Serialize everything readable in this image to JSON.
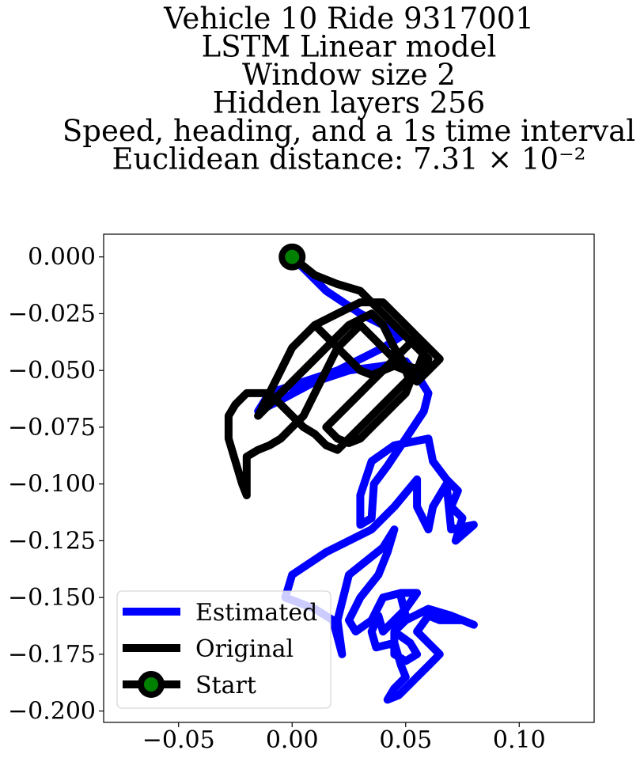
{
  "chart_data": {
    "type": "line",
    "title_lines": [
      "Vehicle 10 Ride 9317001",
      "LSTM Linear model",
      "Window size 2",
      "Hidden layers 256",
      "Speed, heading, and a 1s time interval",
      "Euclidean distance: 7.31 × 10⁻²"
    ],
    "xlim": [
      -0.083,
      0.133
    ],
    "ylim": [
      -0.205,
      0.01
    ],
    "x_ticks": [
      -0.05,
      0.0,
      0.05,
      0.1
    ],
    "x_tick_labels": [
      "−0.05",
      "0.00",
      "0.05",
      "0.10"
    ],
    "y_ticks": [
      0.0,
      -0.025,
      -0.05,
      -0.075,
      -0.1,
      -0.125,
      -0.15,
      -0.175,
      -0.2
    ],
    "y_tick_labels": [
      "0.000",
      "−0.025",
      "−0.050",
      "−0.075",
      "−0.100",
      "−0.125",
      "−0.150",
      "−0.175",
      "−0.200"
    ],
    "grid": false,
    "legend_position": "lower-left",
    "series": [
      {
        "name": "Estimated",
        "color": "#0000ff",
        "points": [
          [
            0.0,
            0.0
          ],
          [
            0.015,
            -0.015
          ],
          [
            0.03,
            -0.025
          ],
          [
            0.04,
            -0.03
          ],
          [
            0.048,
            -0.035
          ],
          [
            0.04,
            -0.04
          ],
          [
            0.03,
            -0.045
          ],
          [
            0.02,
            -0.05
          ],
          [
            0.005,
            -0.055
          ],
          [
            -0.01,
            -0.06
          ],
          [
            -0.015,
            -0.068
          ],
          [
            -0.005,
            -0.063
          ],
          [
            0.01,
            -0.055
          ],
          [
            0.025,
            -0.05
          ],
          [
            0.04,
            -0.048
          ],
          [
            0.05,
            -0.046
          ],
          [
            0.055,
            -0.052
          ],
          [
            0.06,
            -0.06
          ],
          [
            0.058,
            -0.068
          ],
          [
            0.05,
            -0.08
          ],
          [
            0.042,
            -0.092
          ],
          [
            0.036,
            -0.1
          ],
          [
            0.035,
            -0.115
          ],
          [
            0.03,
            -0.118
          ],
          [
            0.03,
            -0.105
          ],
          [
            0.035,
            -0.09
          ],
          [
            0.045,
            -0.083
          ],
          [
            0.06,
            -0.08
          ],
          [
            0.062,
            -0.09
          ],
          [
            0.068,
            -0.098
          ],
          [
            0.073,
            -0.103
          ],
          [
            0.07,
            -0.11
          ],
          [
            0.075,
            -0.115
          ],
          [
            0.072,
            -0.125
          ],
          [
            0.08,
            -0.118
          ],
          [
            0.07,
            -0.12
          ],
          [
            0.068,
            -0.1
          ],
          [
            0.062,
            -0.11
          ],
          [
            0.06,
            -0.12
          ],
          [
            0.055,
            -0.11
          ],
          [
            0.055,
            -0.098
          ],
          [
            0.045,
            -0.11
          ],
          [
            0.035,
            -0.12
          ],
          [
            0.015,
            -0.13
          ],
          [
            0.0,
            -0.14
          ],
          [
            -0.003,
            -0.15
          ],
          [
            0.01,
            -0.155
          ],
          [
            0.018,
            -0.16
          ],
          [
            0.022,
            -0.175
          ],
          [
            0.02,
            -0.16
          ],
          [
            0.025,
            -0.14
          ],
          [
            0.04,
            -0.128
          ],
          [
            0.045,
            -0.12
          ],
          [
            0.042,
            -0.13
          ],
          [
            0.038,
            -0.14
          ],
          [
            0.03,
            -0.15
          ],
          [
            0.025,
            -0.16
          ],
          [
            0.028,
            -0.165
          ],
          [
            0.035,
            -0.16
          ],
          [
            0.04,
            -0.15
          ],
          [
            0.048,
            -0.148
          ],
          [
            0.055,
            -0.148
          ],
          [
            0.05,
            -0.155
          ],
          [
            0.045,
            -0.16
          ],
          [
            0.04,
            -0.165
          ],
          [
            0.038,
            -0.158
          ],
          [
            0.035,
            -0.165
          ],
          [
            0.037,
            -0.172
          ],
          [
            0.045,
            -0.17
          ],
          [
            0.048,
            -0.18
          ],
          [
            0.05,
            -0.185
          ],
          [
            0.045,
            -0.19
          ],
          [
            0.042,
            -0.195
          ],
          [
            0.047,
            -0.193
          ],
          [
            0.05,
            -0.19
          ],
          [
            0.055,
            -0.185
          ],
          [
            0.06,
            -0.18
          ],
          [
            0.065,
            -0.175
          ],
          [
            0.06,
            -0.17
          ],
          [
            0.055,
            -0.165
          ],
          [
            0.06,
            -0.158
          ],
          [
            0.065,
            -0.16
          ],
          [
            0.075,
            -0.16
          ],
          [
            0.08,
            -0.162
          ],
          [
            0.07,
            -0.158
          ],
          [
            0.06,
            -0.155
          ],
          [
            0.05,
            -0.16
          ],
          [
            0.045,
            -0.165
          ],
          [
            0.052,
            -0.17
          ],
          [
            0.055,
            -0.175
          ],
          [
            0.05,
            -0.178
          ],
          [
            0.045,
            -0.175
          ],
          [
            0.045,
            -0.165
          ],
          [
            0.05,
            -0.158
          ],
          [
            0.048,
            -0.15
          ]
        ]
      },
      {
        "name": "Original",
        "color": "#000000",
        "points": [
          [
            0.0,
            0.0
          ],
          [
            0.01,
            -0.008
          ],
          [
            0.02,
            -0.012
          ],
          [
            0.03,
            -0.015
          ],
          [
            0.035,
            -0.02
          ],
          [
            0.04,
            -0.025
          ],
          [
            0.045,
            -0.03
          ],
          [
            0.05,
            -0.035
          ],
          [
            0.055,
            -0.04
          ],
          [
            0.06,
            -0.045
          ],
          [
            0.058,
            -0.05
          ],
          [
            0.05,
            -0.048
          ],
          [
            0.045,
            -0.04
          ],
          [
            0.04,
            -0.03
          ],
          [
            0.035,
            -0.025
          ],
          [
            0.025,
            -0.03
          ],
          [
            0.02,
            -0.035
          ],
          [
            0.01,
            -0.045
          ],
          [
            0.0,
            -0.055
          ],
          [
            -0.005,
            -0.06
          ],
          [
            -0.01,
            -0.065
          ],
          [
            -0.015,
            -0.07
          ],
          [
            -0.01,
            -0.06
          ],
          [
            -0.005,
            -0.05
          ],
          [
            0.0,
            -0.04
          ],
          [
            0.01,
            -0.03
          ],
          [
            0.02,
            -0.025
          ],
          [
            0.03,
            -0.02
          ],
          [
            0.04,
            -0.02
          ],
          [
            0.045,
            -0.025
          ],
          [
            0.05,
            -0.03
          ],
          [
            0.055,
            -0.035
          ],
          [
            0.058,
            -0.042
          ],
          [
            0.055,
            -0.05
          ],
          [
            0.05,
            -0.055
          ],
          [
            0.045,
            -0.06
          ],
          [
            0.04,
            -0.065
          ],
          [
            0.035,
            -0.07
          ],
          [
            0.03,
            -0.075
          ],
          [
            0.025,
            -0.08
          ],
          [
            0.02,
            -0.085
          ],
          [
            0.015,
            -0.083
          ],
          [
            0.01,
            -0.078
          ],
          [
            0.005,
            -0.075
          ],
          [
            0.0,
            -0.07
          ],
          [
            -0.005,
            -0.065
          ],
          [
            -0.01,
            -0.06
          ],
          [
            -0.015,
            -0.06
          ],
          [
            -0.02,
            -0.06
          ],
          [
            -0.025,
            -0.065
          ],
          [
            -0.028,
            -0.07
          ],
          [
            -0.028,
            -0.08
          ],
          [
            -0.025,
            -0.09
          ],
          [
            -0.022,
            -0.1
          ],
          [
            -0.02,
            -0.105
          ],
          [
            -0.02,
            -0.098
          ],
          [
            -0.02,
            -0.088
          ],
          [
            -0.015,
            -0.085
          ],
          [
            -0.01,
            -0.083
          ],
          [
            -0.005,
            -0.08
          ],
          [
            0.0,
            -0.075
          ],
          [
            0.005,
            -0.07
          ],
          [
            0.01,
            -0.06
          ],
          [
            0.015,
            -0.05
          ],
          [
            0.02,
            -0.04
          ],
          [
            0.025,
            -0.035
          ],
          [
            0.03,
            -0.03
          ],
          [
            0.035,
            -0.035
          ],
          [
            0.04,
            -0.04
          ],
          [
            0.045,
            -0.045
          ],
          [
            0.05,
            -0.05
          ],
          [
            0.055,
            -0.055
          ],
          [
            0.06,
            -0.05
          ],
          [
            0.065,
            -0.045
          ],
          [
            0.06,
            -0.04
          ],
          [
            0.055,
            -0.035
          ],
          [
            0.05,
            -0.04
          ],
          [
            0.045,
            -0.045
          ],
          [
            0.04,
            -0.05
          ],
          [
            0.035,
            -0.055
          ],
          [
            0.03,
            -0.06
          ],
          [
            0.025,
            -0.065
          ],
          [
            0.02,
            -0.07
          ],
          [
            0.015,
            -0.075
          ],
          [
            0.02,
            -0.08
          ],
          [
            0.025,
            -0.082
          ],
          [
            0.03,
            -0.08
          ],
          [
            0.035,
            -0.075
          ],
          [
            0.04,
            -0.07
          ],
          [
            0.045,
            -0.065
          ],
          [
            0.05,
            -0.06
          ],
          [
            0.052,
            -0.055
          ],
          [
            0.05,
            -0.05
          ],
          [
            0.045,
            -0.048
          ],
          [
            0.04,
            -0.05
          ],
          [
            0.035,
            -0.052
          ],
          [
            0.03,
            -0.05
          ],
          [
            0.025,
            -0.045
          ],
          [
            0.02,
            -0.04
          ],
          [
            0.015,
            -0.035
          ],
          [
            0.01,
            -0.03
          ]
        ]
      }
    ],
    "start": {
      "name": "Start",
      "x": 0.0,
      "y": 0.0,
      "marker_face": "#008000",
      "marker_edge": "#000000"
    }
  }
}
